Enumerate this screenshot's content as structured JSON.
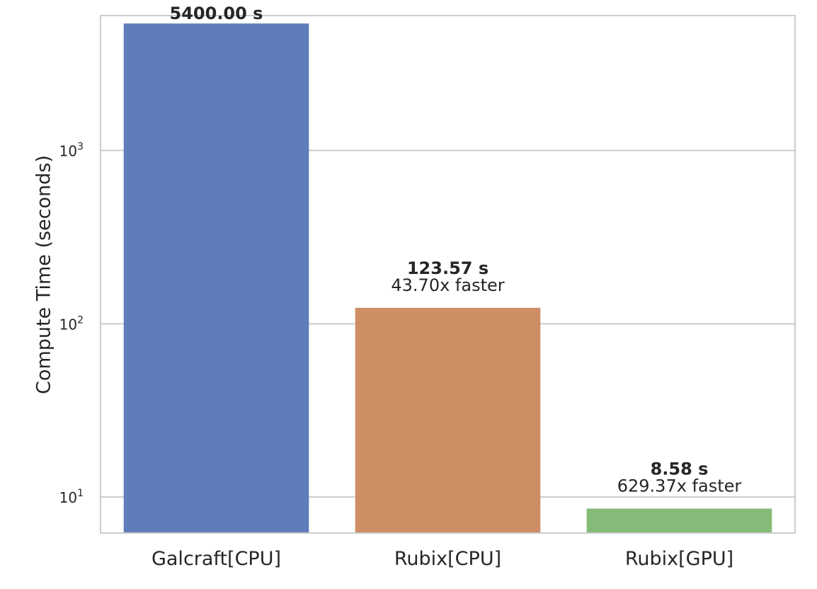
{
  "chart_data": {
    "type": "bar",
    "scale_y": "log",
    "ylabel": "Compute Time (seconds)",
    "xlabel": "",
    "ylim": [
      6.2,
      6000
    ],
    "grid": "horizontal",
    "categories": [
      "Galcraft[CPU]",
      "Rubix[CPU]",
      "Rubix[GPU]"
    ],
    "values": [
      5400.0,
      123.57,
      8.58
    ],
    "value_labels": [
      "5400.00 s",
      "123.57 s",
      "8.58 s"
    ],
    "speedup_labels": [
      "",
      "43.70x faster",
      "629.37x faster"
    ],
    "colors": [
      "#5f7dbb",
      "#cd8d65",
      "#85bb78"
    ],
    "yticks": [
      {
        "value": 10,
        "base": "10",
        "exp": "1"
      },
      {
        "value": 100,
        "base": "10",
        "exp": "2"
      },
      {
        "value": 1000,
        "base": "10",
        "exp": "3"
      }
    ]
  }
}
